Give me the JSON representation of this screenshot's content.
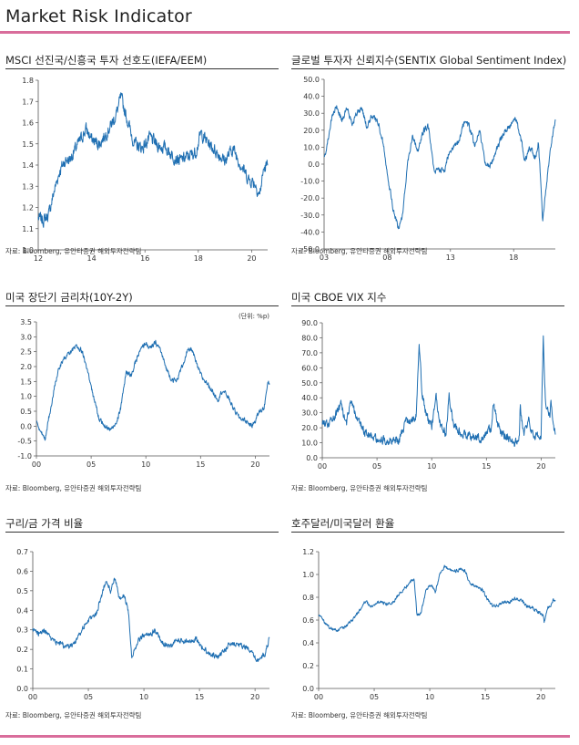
{
  "page": {
    "title": "Market Risk Indicator",
    "accent_color": "#d96d9b",
    "line_color": "#1f6fb2"
  },
  "chart_data": [
    {
      "id": "msci",
      "type": "line",
      "title": "MSCI 선진국/신흥국 투자 선호도(IEFA/EEM)",
      "source": "자료: Bloomberg,  유안타증권 해외투자전략팀",
      "unit": "",
      "xlim": [
        2012.0,
        2020.6
      ],
      "ylim": [
        1.0,
        1.8
      ],
      "yticks": [
        1.0,
        1.1,
        1.2,
        1.3,
        1.4,
        1.5,
        1.6,
        1.7,
        1.8
      ],
      "ytick_decimals": 1,
      "xticks": [
        {
          "x": 2012,
          "label": "12"
        },
        {
          "x": 2014,
          "label": "14"
        },
        {
          "x": 2016,
          "label": "16"
        },
        {
          "x": 2018,
          "label": "18"
        },
        {
          "x": 2020,
          "label": "20"
        }
      ],
      "noise": 0.025,
      "anchors": [
        [
          2012.0,
          1.15
        ],
        [
          2012.2,
          1.14
        ],
        [
          2012.4,
          1.17
        ],
        [
          2012.6,
          1.28
        ],
        [
          2012.8,
          1.37
        ],
        [
          2013.0,
          1.42
        ],
        [
          2013.2,
          1.43
        ],
        [
          2013.5,
          1.5
        ],
        [
          2013.8,
          1.57
        ],
        [
          2014.0,
          1.52
        ],
        [
          2014.3,
          1.5
        ],
        [
          2014.6,
          1.56
        ],
        [
          2014.9,
          1.63
        ],
        [
          2015.1,
          1.72
        ],
        [
          2015.3,
          1.63
        ],
        [
          2015.6,
          1.5
        ],
        [
          2015.9,
          1.48
        ],
        [
          2016.2,
          1.53
        ],
        [
          2016.5,
          1.49
        ],
        [
          2016.8,
          1.48
        ],
        [
          2017.0,
          1.45
        ],
        [
          2017.3,
          1.42
        ],
        [
          2017.6,
          1.44
        ],
        [
          2017.9,
          1.46
        ],
        [
          2018.1,
          1.55
        ],
        [
          2018.4,
          1.5
        ],
        [
          2018.7,
          1.46
        ],
        [
          2019.0,
          1.42
        ],
        [
          2019.3,
          1.48
        ],
        [
          2019.6,
          1.4
        ],
        [
          2019.9,
          1.33
        ],
        [
          2020.1,
          1.32
        ],
        [
          2020.3,
          1.26
        ],
        [
          2020.45,
          1.38
        ],
        [
          2020.6,
          1.4
        ]
      ]
    },
    {
      "id": "sentix",
      "type": "line",
      "title": "글로벌 투자자 신뢰지수(SENTIX Global Sentiment Index)",
      "source": "자료: Bloomberg,  유안타증권 해외투자전략팀",
      "unit": "",
      "xlim": [
        2003.0,
        2021.3
      ],
      "ylim": [
        -50,
        50
      ],
      "yticks": [
        -50,
        -40,
        -30,
        -20,
        -10,
        0,
        10,
        20,
        30,
        40,
        50
      ],
      "ytick_decimals": 1,
      "xticks": [
        {
          "x": 2003,
          "label": "03"
        },
        {
          "x": 2008,
          "label": "08"
        },
        {
          "x": 2013,
          "label": "13"
        },
        {
          "x": 2018,
          "label": "18"
        }
      ],
      "noise": 1.5,
      "anchors": [
        [
          2003.0,
          3
        ],
        [
          2003.3,
          14
        ],
        [
          2003.6,
          27
        ],
        [
          2004.0,
          34
        ],
        [
          2004.4,
          26
        ],
        [
          2004.8,
          33
        ],
        [
          2005.2,
          24
        ],
        [
          2005.6,
          30
        ],
        [
          2006.0,
          33
        ],
        [
          2006.4,
          21
        ],
        [
          2006.8,
          29
        ],
        [
          2007.3,
          24
        ],
        [
          2007.7,
          12
        ],
        [
          2008.0,
          -5
        ],
        [
          2008.5,
          -28
        ],
        [
          2008.9,
          -38
        ],
        [
          2009.2,
          -30
        ],
        [
          2009.6,
          0
        ],
        [
          2010.0,
          17
        ],
        [
          2010.4,
          8
        ],
        [
          2010.9,
          20
        ],
        [
          2011.3,
          22
        ],
        [
          2011.7,
          -5
        ],
        [
          2012.1,
          -2
        ],
        [
          2012.5,
          -5
        ],
        [
          2012.9,
          8
        ],
        [
          2013.3,
          10
        ],
        [
          2013.7,
          13
        ],
        [
          2014.1,
          26
        ],
        [
          2014.5,
          22
        ],
        [
          2014.9,
          11
        ],
        [
          2015.3,
          20
        ],
        [
          2015.7,
          2
        ],
        [
          2016.1,
          -2
        ],
        [
          2016.5,
          6
        ],
        [
          2016.9,
          13
        ],
        [
          2017.3,
          20
        ],
        [
          2017.7,
          22
        ],
        [
          2018.1,
          28
        ],
        [
          2018.5,
          18
        ],
        [
          2018.9,
          2
        ],
        [
          2019.3,
          10
        ],
        [
          2019.7,
          4
        ],
        [
          2019.95,
          12
        ],
        [
          2020.15,
          -10
        ],
        [
          2020.3,
          -33
        ],
        [
          2020.6,
          -12
        ],
        [
          2020.9,
          8
        ],
        [
          2021.1,
          18
        ],
        [
          2021.3,
          26
        ]
      ]
    },
    {
      "id": "spread",
      "type": "line",
      "title": "미국 장단기 금리차(10Y-2Y)",
      "source": "자료: Bloomberg,  유안타증권 해외투자전략팀",
      "unit": "(단위: %p)",
      "xlim": [
        2000.0,
        2021.3
      ],
      "ylim": [
        -1.0,
        3.5
      ],
      "yticks": [
        -1.0,
        -0.5,
        0.0,
        0.5,
        1.0,
        1.5,
        2.0,
        2.5,
        3.0,
        3.5
      ],
      "ytick_decimals": 1,
      "xticks": [
        {
          "x": 2000,
          "label": "00"
        },
        {
          "x": 2005,
          "label": "05"
        },
        {
          "x": 2010,
          "label": "10"
        },
        {
          "x": 2015,
          "label": "15"
        },
        {
          "x": 2020,
          "label": "20"
        }
      ],
      "noise": 0.07,
      "anchors": [
        [
          2000.0,
          0.2
        ],
        [
          2000.3,
          -0.2
        ],
        [
          2000.8,
          -0.4
        ],
        [
          2001.2,
          0.4
        ],
        [
          2001.6,
          1.2
        ],
        [
          2002.0,
          1.9
        ],
        [
          2002.6,
          2.3
        ],
        [
          2003.2,
          2.5
        ],
        [
          2003.7,
          2.7
        ],
        [
          2004.2,
          2.5
        ],
        [
          2004.7,
          1.8
        ],
        [
          2005.2,
          1.0
        ],
        [
          2005.7,
          0.3
        ],
        [
          2006.2,
          0.0
        ],
        [
          2006.7,
          -0.1
        ],
        [
          2007.2,
          0.0
        ],
        [
          2007.7,
          0.6
        ],
        [
          2008.2,
          1.8
        ],
        [
          2008.7,
          1.7
        ],
        [
          2009.2,
          2.3
        ],
        [
          2009.6,
          2.6
        ],
        [
          2010.0,
          2.8
        ],
        [
          2010.4,
          2.6
        ],
        [
          2010.9,
          2.8
        ],
        [
          2011.3,
          2.6
        ],
        [
          2011.8,
          2.0
        ],
        [
          2012.3,
          1.6
        ],
        [
          2012.8,
          1.5
        ],
        [
          2013.3,
          2.0
        ],
        [
          2013.8,
          2.5
        ],
        [
          2014.2,
          2.6
        ],
        [
          2014.7,
          2.0
        ],
        [
          2015.2,
          1.6
        ],
        [
          2015.7,
          1.4
        ],
        [
          2016.2,
          1.1
        ],
        [
          2016.6,
          0.9
        ],
        [
          2017.0,
          1.2
        ],
        [
          2017.5,
          1.0
        ],
        [
          2018.0,
          0.6
        ],
        [
          2018.5,
          0.3
        ],
        [
          2019.0,
          0.2
        ],
        [
          2019.4,
          0.1
        ],
        [
          2019.7,
          0.0
        ],
        [
          2020.0,
          0.2
        ],
        [
          2020.4,
          0.5
        ],
        [
          2020.8,
          0.6
        ],
        [
          2021.0,
          1.1
        ],
        [
          2021.2,
          1.5
        ],
        [
          2021.3,
          1.4
        ]
      ]
    },
    {
      "id": "vix",
      "type": "line",
      "title": "미국 CBOE VIX 지수",
      "source": "자료: Bloomberg,  유안타증권 해외투자전략팀",
      "unit": "",
      "xlim": [
        2000.0,
        2021.3
      ],
      "ylim": [
        0,
        90
      ],
      "yticks": [
        0,
        10,
        20,
        30,
        40,
        50,
        60,
        70,
        80,
        90
      ],
      "ytick_decimals": 1,
      "xticks": [
        {
          "x": 2000,
          "label": "00"
        },
        {
          "x": 2005,
          "label": "05"
        },
        {
          "x": 2010,
          "label": "10"
        },
        {
          "x": 2015,
          "label": "15"
        },
        {
          "x": 2020,
          "label": "20"
        }
      ],
      "noise": 2.5,
      "anchors": [
        [
          2000.0,
          22
        ],
        [
          2000.5,
          23
        ],
        [
          2001.0,
          26
        ],
        [
          2001.7,
          35
        ],
        [
          2002.2,
          22
        ],
        [
          2002.6,
          40
        ],
        [
          2002.9,
          32
        ],
        [
          2003.3,
          25
        ],
        [
          2003.8,
          18
        ],
        [
          2004.5,
          15
        ],
        [
          2005.5,
          12
        ],
        [
          2006.5,
          12
        ],
        [
          2007.0,
          11
        ],
        [
          2007.6,
          24
        ],
        [
          2008.2,
          25
        ],
        [
          2008.6,
          28
        ],
        [
          2008.85,
          78
        ],
        [
          2009.1,
          45
        ],
        [
          2009.5,
          28
        ],
        [
          2010.0,
          20
        ],
        [
          2010.4,
          40
        ],
        [
          2010.8,
          22
        ],
        [
          2011.3,
          17
        ],
        [
          2011.6,
          42
        ],
        [
          2012.0,
          22
        ],
        [
          2012.6,
          17
        ],
        [
          2013.5,
          14
        ],
        [
          2014.5,
          13
        ],
        [
          2015.5,
          20
        ],
        [
          2015.65,
          38
        ],
        [
          2016.0,
          22
        ],
        [
          2016.6,
          14
        ],
        [
          2017.5,
          10
        ],
        [
          2018.0,
          12
        ],
        [
          2018.1,
          35
        ],
        [
          2018.4,
          16
        ],
        [
          2018.9,
          25
        ],
        [
          2019.3,
          15
        ],
        [
          2019.8,
          14
        ],
        [
          2020.0,
          15
        ],
        [
          2020.2,
          82
        ],
        [
          2020.4,
          35
        ],
        [
          2020.8,
          28
        ],
        [
          2020.9,
          38
        ],
        [
          2021.1,
          22
        ],
        [
          2021.3,
          17
        ]
      ]
    },
    {
      "id": "copper-gold",
      "type": "line",
      "title": "구리/금 가격 비율",
      "source": "자료: Bloomberg,  유안타증권 해외투자전략팀",
      "unit": "",
      "xlim": [
        2000.0,
        2021.3
      ],
      "ylim": [
        0.0,
        0.7
      ],
      "yticks": [
        0.0,
        0.1,
        0.2,
        0.3,
        0.4,
        0.5,
        0.6,
        0.7
      ],
      "ytick_decimals": 1,
      "xticks": [
        {
          "x": 2000,
          "label": "00"
        },
        {
          "x": 2005,
          "label": "05"
        },
        {
          "x": 2010,
          "label": "10"
        },
        {
          "x": 2015,
          "label": "15"
        },
        {
          "x": 2020,
          "label": "20"
        }
      ],
      "noise": 0.012,
      "anchors": [
        [
          2000.0,
          0.3
        ],
        [
          2000.5,
          0.28
        ],
        [
          2001.0,
          0.3
        ],
        [
          2001.5,
          0.26
        ],
        [
          2002.0,
          0.24
        ],
        [
          2002.5,
          0.23
        ],
        [
          2003.0,
          0.21
        ],
        [
          2003.6,
          0.22
        ],
        [
          2004.2,
          0.28
        ],
        [
          2004.7,
          0.33
        ],
        [
          2005.2,
          0.36
        ],
        [
          2005.7,
          0.38
        ],
        [
          2006.2,
          0.48
        ],
        [
          2006.6,
          0.55
        ],
        [
          2007.0,
          0.5
        ],
        [
          2007.4,
          0.57
        ],
        [
          2007.8,
          0.45
        ],
        [
          2008.2,
          0.48
        ],
        [
          2008.6,
          0.4
        ],
        [
          2008.9,
          0.16
        ],
        [
          2009.3,
          0.22
        ],
        [
          2009.7,
          0.26
        ],
        [
          2010.2,
          0.27
        ],
        [
          2010.6,
          0.28
        ],
        [
          2011.0,
          0.3
        ],
        [
          2011.5,
          0.25
        ],
        [
          2012.0,
          0.22
        ],
        [
          2012.6,
          0.22
        ],
        [
          2013.0,
          0.25
        ],
        [
          2013.6,
          0.24
        ],
        [
          2014.2,
          0.24
        ],
        [
          2014.7,
          0.26
        ],
        [
          2015.2,
          0.21
        ],
        [
          2015.7,
          0.19
        ],
        [
          2016.2,
          0.17
        ],
        [
          2016.7,
          0.16
        ],
        [
          2017.2,
          0.19
        ],
        [
          2017.7,
          0.23
        ],
        [
          2018.2,
          0.23
        ],
        [
          2018.7,
          0.22
        ],
        [
          2019.2,
          0.21
        ],
        [
          2019.7,
          0.18
        ],
        [
          2020.2,
          0.14
        ],
        [
          2020.6,
          0.16
        ],
        [
          2020.9,
          0.18
        ],
        [
          2021.1,
          0.22
        ],
        [
          2021.3,
          0.26
        ]
      ]
    },
    {
      "id": "aud-usd",
      "type": "line",
      "title": "호주달러/미국달러  환율",
      "source": "자료: Bloomberg,  유안타증권 해외투자전략팀",
      "unit": "",
      "xlim": [
        2000.0,
        2021.3
      ],
      "ylim": [
        0.0,
        1.2
      ],
      "yticks": [
        0.0,
        0.2,
        0.4,
        0.6,
        0.8,
        1.0,
        1.2
      ],
      "ytick_decimals": 1,
      "xticks": [
        {
          "x": 2000,
          "label": "00"
        },
        {
          "x": 2005,
          "label": "05"
        },
        {
          "x": 2010,
          "label": "10"
        },
        {
          "x": 2015,
          "label": "15"
        },
        {
          "x": 2020,
          "label": "20"
        }
      ],
      "noise": 0.012,
      "anchors": [
        [
          2000.0,
          0.65
        ],
        [
          2000.6,
          0.57
        ],
        [
          2001.2,
          0.52
        ],
        [
          2001.8,
          0.51
        ],
        [
          2002.4,
          0.54
        ],
        [
          2003.0,
          0.6
        ],
        [
          2003.6,
          0.67
        ],
        [
          2004.2,
          0.76
        ],
        [
          2004.8,
          0.72
        ],
        [
          2005.5,
          0.76
        ],
        [
          2006.2,
          0.74
        ],
        [
          2006.8,
          0.76
        ],
        [
          2007.3,
          0.84
        ],
        [
          2007.8,
          0.88
        ],
        [
          2008.2,
          0.93
        ],
        [
          2008.6,
          0.96
        ],
        [
          2008.85,
          0.64
        ],
        [
          2009.2,
          0.66
        ],
        [
          2009.7,
          0.88
        ],
        [
          2010.2,
          0.9
        ],
        [
          2010.5,
          0.85
        ],
        [
          2010.9,
          1.0
        ],
        [
          2011.3,
          1.07
        ],
        [
          2011.7,
          1.05
        ],
        [
          2012.2,
          1.03
        ],
        [
          2012.7,
          1.04
        ],
        [
          2013.2,
          1.03
        ],
        [
          2013.6,
          0.92
        ],
        [
          2014.2,
          0.9
        ],
        [
          2014.7,
          0.87
        ],
        [
          2015.2,
          0.78
        ],
        [
          2015.7,
          0.72
        ],
        [
          2016.2,
          0.73
        ],
        [
          2016.7,
          0.76
        ],
        [
          2017.2,
          0.76
        ],
        [
          2017.7,
          0.79
        ],
        [
          2018.2,
          0.78
        ],
        [
          2018.7,
          0.72
        ],
        [
          2019.2,
          0.71
        ],
        [
          2019.7,
          0.68
        ],
        [
          2020.2,
          0.64
        ],
        [
          2020.3,
          0.58
        ],
        [
          2020.6,
          0.71
        ],
        [
          2020.9,
          0.73
        ],
        [
          2021.1,
          0.78
        ],
        [
          2021.3,
          0.77
        ]
      ]
    }
  ]
}
